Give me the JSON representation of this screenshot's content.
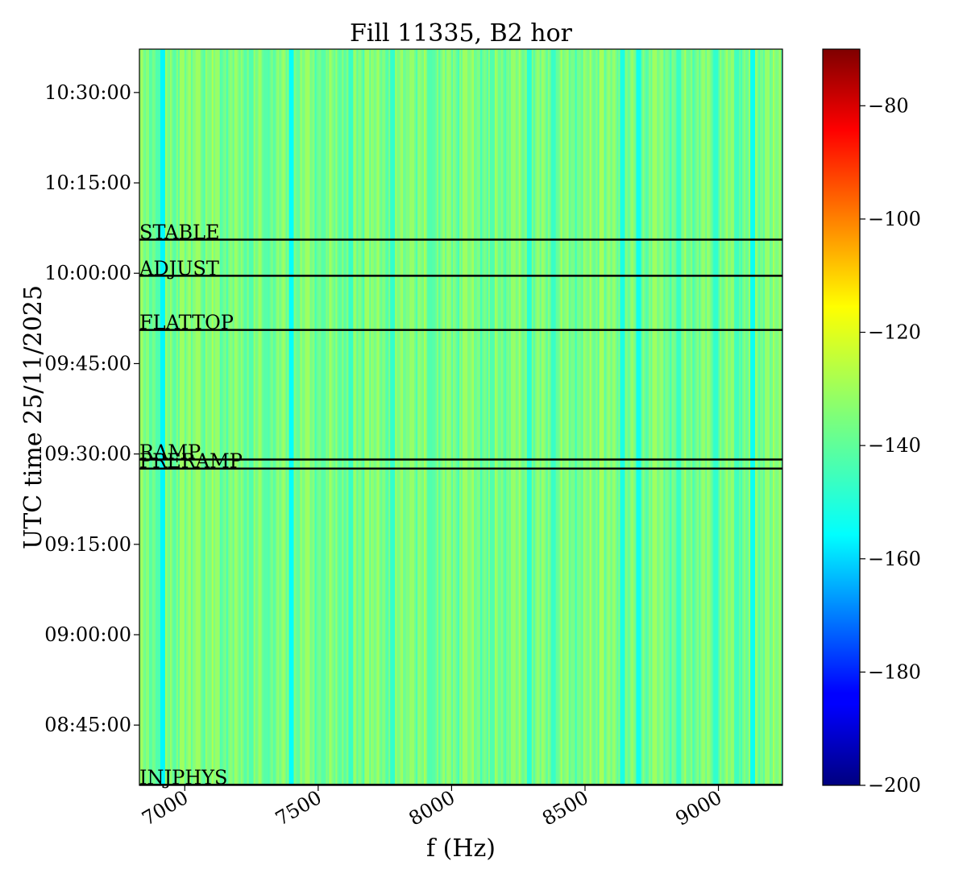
{
  "chart_data": {
    "type": "heatmap",
    "title": "Fill 11335, B2 hor",
    "xlabel": "f (Hz)",
    "ylabel": "UTC time 25/11/2025",
    "xlim": [
      6830,
      9240
    ],
    "ylim_minutes": [
      515.0,
      637.2
    ],
    "x_ticks": [
      {
        "value": 7000,
        "label": "7000"
      },
      {
        "value": 7500,
        "label": "7500"
      },
      {
        "value": 8000,
        "label": "8000"
      },
      {
        "value": 8500,
        "label": "8500"
      },
      {
        "value": 9000,
        "label": "9000"
      }
    ],
    "y_ticks": [
      {
        "value": 525,
        "label": "08:45:00"
      },
      {
        "value": 540,
        "label": "09:00:00"
      },
      {
        "value": 555,
        "label": "09:15:00"
      },
      {
        "value": 570,
        "label": "09:30:00"
      },
      {
        "value": 585,
        "label": "09:45:00"
      },
      {
        "value": 600,
        "label": "10:00:00"
      },
      {
        "value": 615,
        "label": "10:15:00"
      },
      {
        "value": 630,
        "label": "10:30:00"
      }
    ],
    "events": [
      {
        "label": "INJPHYS",
        "time": "08:35:05"
      },
      {
        "label": "PRERAMP",
        "time": "09:27:35"
      },
      {
        "label": "RAMP",
        "time": "09:29:05"
      },
      {
        "label": "FLATTOP",
        "time": "09:50:35"
      },
      {
        "label": "ADJUST",
        "time": "09:59:35"
      },
      {
        "label": "STABLE",
        "time": "10:05:35"
      }
    ],
    "colorbar": {
      "colormap": "jet",
      "range": [
        -200,
        -70
      ],
      "ticks": [
        {
          "value": -80,
          "label": "−80"
        },
        {
          "value": -100,
          "label": "−100"
        },
        {
          "value": -120,
          "label": "−120"
        },
        {
          "value": -140,
          "label": "−140"
        },
        {
          "value": -160,
          "label": "−160"
        },
        {
          "value": -180,
          "label": "−180"
        },
        {
          "value": -200,
          "label": "−200"
        }
      ]
    },
    "spectrum": {
      "note_values": "frequency (Hz) vs PSD level; constant over time",
      "background_level": -136,
      "features": [
        {
          "f": 6900,
          "level": -141
        },
        {
          "f": 6918,
          "level": -152
        },
        {
          "f": 6990,
          "level": -131
        },
        {
          "f": 7050,
          "level": -131
        },
        {
          "f": 7120,
          "level": -132
        },
        {
          "f": 7250,
          "level": -141
        },
        {
          "f": 7305,
          "level": -140
        },
        {
          "f": 7400,
          "level": -151
        },
        {
          "f": 7460,
          "level": -131
        },
        {
          "f": 7520,
          "level": -140
        },
        {
          "f": 7620,
          "level": -144
        },
        {
          "f": 7680,
          "level": -131
        },
        {
          "f": 7780,
          "level": -145
        },
        {
          "f": 7850,
          "level": -132
        },
        {
          "f": 7920,
          "level": -141
        },
        {
          "f": 8050,
          "level": -131
        },
        {
          "f": 8150,
          "level": -141
        },
        {
          "f": 8230,
          "level": -132
        },
        {
          "f": 8290,
          "level": -146
        },
        {
          "f": 8380,
          "level": -144
        },
        {
          "f": 8560,
          "level": -130
        },
        {
          "f": 8640,
          "level": -148
        },
        {
          "f": 8700,
          "level": -149
        },
        {
          "f": 8760,
          "level": -131
        },
        {
          "f": 8850,
          "level": -144
        },
        {
          "f": 8990,
          "level": -145
        },
        {
          "f": 9070,
          "level": -143
        },
        {
          "f": 9130,
          "level": -150
        },
        {
          "f": 9180,
          "level": -132
        }
      ]
    }
  }
}
